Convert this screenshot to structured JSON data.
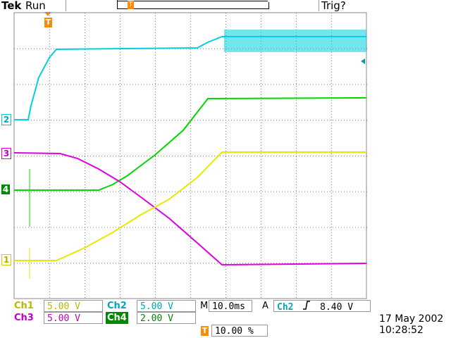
{
  "header": {
    "brand": "Tek",
    "status": "Run",
    "trigger_state": "Trig?"
  },
  "markers": {
    "trigger_marker": "T",
    "ch1": "1",
    "ch2": "2",
    "ch3": "3",
    "ch4": "4"
  },
  "channels": [
    {
      "label": "Ch1",
      "scale": "5.00 V",
      "color": "#e8e800"
    },
    {
      "label": "Ch2",
      "scale": "5.00 V",
      "color": "#00c8d8"
    },
    {
      "label": "Ch3",
      "scale": "5.00 V",
      "color": "#e000e0"
    },
    {
      "label": "Ch4",
      "scale": "2.00 V",
      "color": "#00c800"
    }
  ],
  "timebase": {
    "prefix": "M",
    "value": "10.0ms"
  },
  "trigger": {
    "mode": "A",
    "source": "Ch2",
    "slope_icon": "rising-edge-icon",
    "level": "8.40 V"
  },
  "position": {
    "marker": "T",
    "value": "10.00 %"
  },
  "datetime": {
    "date": "17 May 2002",
    "time": "10:28:52"
  }
}
